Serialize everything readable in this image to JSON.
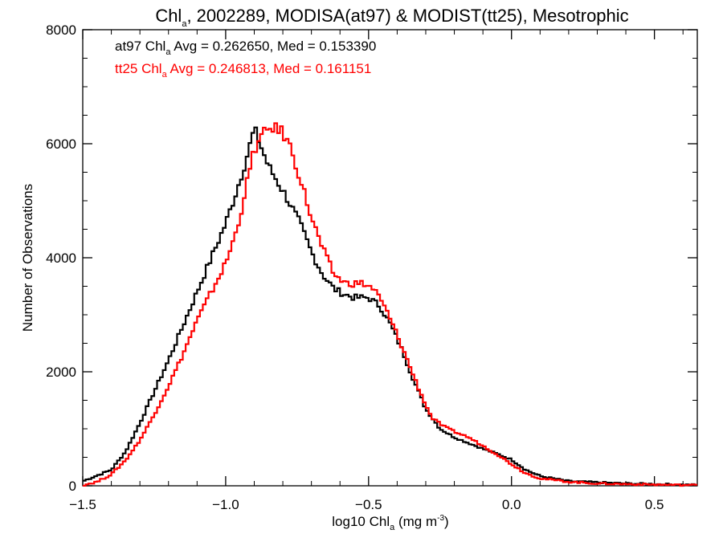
{
  "chart_data": {
    "type": "line",
    "title": {
      "pre": "Chl",
      "sub": "a",
      "post": ", 2002289, MODISA(at97) & MODIST(tt25), Mesotrophic"
    },
    "xlabel": {
      "pre": "log10 Chl",
      "sub": "a",
      "mid": " (mg m",
      "sup": "-3",
      "post": ")"
    },
    "ylabel": "Number of Observations",
    "xlim": [
      -1.5,
      0.65
    ],
    "ylim": [
      0,
      8000
    ],
    "xticks": [
      -1.5,
      -1.0,
      -0.5,
      0.0,
      0.5
    ],
    "xtick_labels": [
      "−1.5",
      "−1.0",
      "−0.5",
      "0.0",
      "0.5"
    ],
    "yticks": [
      0,
      2000,
      4000,
      6000,
      8000
    ],
    "ytick_labels": [
      "0",
      "2000",
      "4000",
      "6000",
      "8000"
    ],
    "annotations": [
      {
        "pre": "at97 Chl",
        "sub": "a",
        "post": " Avg = 0.262650, Med = 0.153390",
        "color": "#000000"
      },
      {
        "pre": "tt25 Chl",
        "sub": "a",
        "post": " Avg = 0.246813, Med = 0.161151",
        "color": "#ff0000"
      }
    ],
    "series": [
      {
        "name": "at97",
        "color": "#000000",
        "points": [
          [
            -1.5,
            80
          ],
          [
            -1.4,
            280
          ],
          [
            -1.35,
            600
          ],
          [
            -1.3,
            1100
          ],
          [
            -1.25,
            1650
          ],
          [
            -1.2,
            2200
          ],
          [
            -1.15,
            2800
          ],
          [
            -1.1,
            3400
          ],
          [
            -1.05,
            4000
          ],
          [
            -1.0,
            4600
          ],
          [
            -0.96,
            5200
          ],
          [
            -0.93,
            5700
          ],
          [
            -0.9,
            6250
          ],
          [
            -0.88,
            6000
          ],
          [
            -0.85,
            5600
          ],
          [
            -0.82,
            5350
          ],
          [
            -0.78,
            5000
          ],
          [
            -0.74,
            4600
          ],
          [
            -0.7,
            4100
          ],
          [
            -0.66,
            3700
          ],
          [
            -0.62,
            3450
          ],
          [
            -0.58,
            3350
          ],
          [
            -0.55,
            3300
          ],
          [
            -0.5,
            3300
          ],
          [
            -0.46,
            3150
          ],
          [
            -0.42,
            2800
          ],
          [
            -0.38,
            2350
          ],
          [
            -0.35,
            1950
          ],
          [
            -0.3,
            1350
          ],
          [
            -0.25,
            1000
          ],
          [
            -0.2,
            850
          ],
          [
            -0.15,
            750
          ],
          [
            -0.1,
            650
          ],
          [
            -0.05,
            560
          ],
          [
            0.0,
            460
          ],
          [
            0.05,
            280
          ],
          [
            0.1,
            170
          ],
          [
            0.2,
            80
          ],
          [
            0.3,
            60
          ],
          [
            0.4,
            40
          ],
          [
            0.5,
            30
          ],
          [
            0.65,
            15
          ]
        ]
      },
      {
        "name": "tt25",
        "color": "#ff0000",
        "points": [
          [
            -1.5,
            10
          ],
          [
            -1.45,
            70
          ],
          [
            -1.4,
            200
          ],
          [
            -1.35,
            450
          ],
          [
            -1.3,
            800
          ],
          [
            -1.25,
            1250
          ],
          [
            -1.2,
            1750
          ],
          [
            -1.15,
            2300
          ],
          [
            -1.1,
            2900
          ],
          [
            -1.05,
            3400
          ],
          [
            -1.0,
            3900
          ],
          [
            -0.96,
            4500
          ],
          [
            -0.93,
            5200
          ],
          [
            -0.9,
            5900
          ],
          [
            -0.87,
            6150
          ],
          [
            -0.84,
            6300
          ],
          [
            -0.8,
            6200
          ],
          [
            -0.77,
            5900
          ],
          [
            -0.74,
            5400
          ],
          [
            -0.7,
            4700
          ],
          [
            -0.66,
            4150
          ],
          [
            -0.62,
            3700
          ],
          [
            -0.58,
            3550
          ],
          [
            -0.55,
            3550
          ],
          [
            -0.52,
            3550
          ],
          [
            -0.48,
            3450
          ],
          [
            -0.44,
            3100
          ],
          [
            -0.4,
            2650
          ],
          [
            -0.36,
            2150
          ],
          [
            -0.32,
            1650
          ],
          [
            -0.28,
            1200
          ],
          [
            -0.24,
            1050
          ],
          [
            -0.2,
            950
          ],
          [
            -0.15,
            850
          ],
          [
            -0.1,
            700
          ],
          [
            -0.05,
            550
          ],
          [
            0.0,
            380
          ],
          [
            0.05,
            220
          ],
          [
            0.1,
            130
          ],
          [
            0.2,
            70
          ],
          [
            0.3,
            40
          ],
          [
            0.4,
            30
          ],
          [
            0.5,
            20
          ],
          [
            0.65,
            10
          ]
        ]
      }
    ]
  }
}
